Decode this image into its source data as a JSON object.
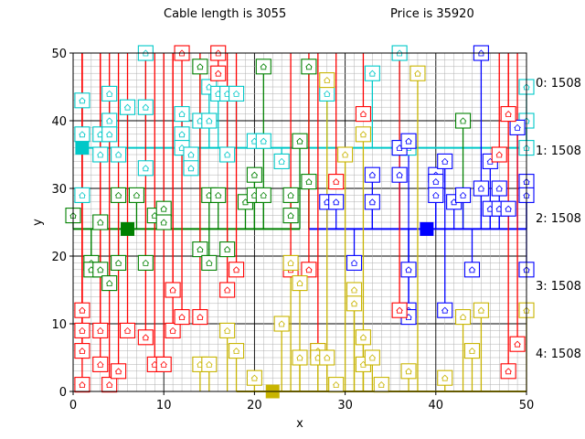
{
  "header": {
    "cable_text": "Cable length is 3055",
    "price_text": "Price is 35920"
  },
  "chart_data": {
    "type": "scatter",
    "xlabel": "x",
    "ylabel": "y",
    "xlim": [
      0,
      50
    ],
    "ylim": [
      0,
      50
    ],
    "x_ticks": [
      "0",
      "10",
      "20",
      "30",
      "40",
      "50"
    ],
    "y_ticks": [
      "0",
      "10",
      "20",
      "30",
      "40",
      "50"
    ],
    "grid": "on",
    "side_labels": [
      "0: 1508",
      "1: 1508",
      "2: 1508",
      "3: 1508",
      "4: 1508"
    ],
    "colors": {
      "red": "#ff0000",
      "cyan": "#00c8c8",
      "green": "#008000",
      "blue": "#0000ff",
      "yellow": "#c8b400"
    },
    "series": [
      {
        "color": "cyan",
        "hub": [
          1,
          36
        ],
        "trunk": "h",
        "trunk_range": [
          1,
          50
        ],
        "houses": [
          [
            1,
            38
          ],
          [
            1,
            43
          ],
          [
            1,
            29
          ],
          [
            3,
            38
          ],
          [
            3,
            35
          ],
          [
            4,
            44
          ],
          [
            4,
            40
          ],
          [
            4,
            38
          ],
          [
            5,
            35
          ],
          [
            6,
            42
          ],
          [
            8,
            42
          ],
          [
            8,
            33
          ],
          [
            8,
            50
          ],
          [
            12,
            41
          ],
          [
            12,
            38
          ],
          [
            12,
            36
          ],
          [
            13,
            35
          ],
          [
            13,
            33
          ],
          [
            14,
            40
          ],
          [
            15,
            45
          ],
          [
            15,
            40
          ],
          [
            16,
            44
          ],
          [
            17,
            44
          ],
          [
            17,
            35
          ],
          [
            18,
            44
          ],
          [
            20,
            37
          ],
          [
            21,
            37
          ],
          [
            23,
            34
          ],
          [
            28,
            44
          ],
          [
            33,
            47
          ],
          [
            36,
            50
          ],
          [
            36,
            36
          ],
          [
            37,
            36
          ],
          [
            50,
            45
          ],
          [
            50,
            40
          ],
          [
            50,
            36
          ]
        ]
      },
      {
        "color": "green",
        "hub": [
          6,
          24
        ],
        "trunk": "h",
        "trunk_range": [
          0,
          25
        ],
        "houses": [
          [
            0,
            26
          ],
          [
            2,
            19
          ],
          [
            2,
            18
          ],
          [
            3,
            18
          ],
          [
            3,
            25
          ],
          [
            4,
            16
          ],
          [
            5,
            29
          ],
          [
            5,
            19
          ],
          [
            7,
            29
          ],
          [
            8,
            19
          ],
          [
            9,
            26
          ],
          [
            10,
            27
          ],
          [
            10,
            25
          ],
          [
            14,
            48
          ],
          [
            14,
            21
          ],
          [
            15,
            29
          ],
          [
            15,
            19
          ],
          [
            16,
            29
          ],
          [
            17,
            21
          ],
          [
            19,
            28
          ],
          [
            20,
            32
          ],
          [
            20,
            29
          ],
          [
            21,
            48
          ],
          [
            21,
            29
          ],
          [
            24,
            29
          ],
          [
            24,
            26
          ],
          [
            25,
            37
          ],
          [
            26,
            48
          ],
          [
            26,
            31
          ],
          [
            43,
            40
          ]
        ]
      },
      {
        "color": "blue",
        "hub": [
          39,
          24
        ],
        "trunk": "h",
        "trunk_range": [
          26,
          50
        ],
        "houses": [
          [
            28,
            28
          ],
          [
            29,
            28
          ],
          [
            31,
            19
          ],
          [
            33,
            32
          ],
          [
            33,
            28
          ],
          [
            36,
            36
          ],
          [
            36,
            32
          ],
          [
            37,
            37
          ],
          [
            37,
            18
          ],
          [
            37,
            12
          ],
          [
            37,
            11
          ],
          [
            40,
            32
          ],
          [
            40,
            31
          ],
          [
            40,
            29
          ],
          [
            41,
            34
          ],
          [
            41,
            12
          ],
          [
            42,
            28
          ],
          [
            43,
            29
          ],
          [
            44,
            18
          ],
          [
            45,
            50
          ],
          [
            45,
            30
          ],
          [
            46,
            34
          ],
          [
            46,
            27
          ],
          [
            47,
            30
          ],
          [
            47,
            27
          ],
          [
            48,
            27
          ],
          [
            49,
            39
          ],
          [
            50,
            31
          ],
          [
            50,
            29
          ],
          [
            50,
            18
          ]
        ]
      },
      {
        "color": "red",
        "hub": null,
        "trunk": "v",
        "trunk_range": [
          0,
          50
        ],
        "houses": [
          [
            1,
            12
          ],
          [
            1,
            9
          ],
          [
            1,
            6
          ],
          [
            1,
            1
          ],
          [
            3,
            9
          ],
          [
            3,
            4
          ],
          [
            4,
            1
          ],
          [
            5,
            3
          ],
          [
            6,
            9
          ],
          [
            8,
            8
          ],
          [
            9,
            4
          ],
          [
            10,
            4
          ],
          [
            11,
            15
          ],
          [
            11,
            9
          ],
          [
            12,
            11
          ],
          [
            12,
            50
          ],
          [
            14,
            11
          ],
          [
            16,
            50
          ],
          [
            16,
            47
          ],
          [
            17,
            15
          ],
          [
            18,
            18
          ],
          [
            24,
            18
          ],
          [
            26,
            18
          ],
          [
            27,
            6
          ],
          [
            29,
            31
          ],
          [
            32,
            41
          ],
          [
            36,
            12
          ],
          [
            47,
            35
          ],
          [
            48,
            41
          ],
          [
            48,
            3
          ],
          [
            49,
            7
          ]
        ]
      },
      {
        "color": "yellow",
        "hub": [
          22,
          0
        ],
        "trunk": "h",
        "trunk_range": [
          18,
          50
        ],
        "houses": [
          [
            14,
            4
          ],
          [
            15,
            4
          ],
          [
            17,
            9
          ],
          [
            18,
            6
          ],
          [
            20,
            2
          ],
          [
            23,
            10
          ],
          [
            24,
            19
          ],
          [
            25,
            16
          ],
          [
            25,
            5
          ],
          [
            27,
            6
          ],
          [
            27,
            5
          ],
          [
            28,
            46
          ],
          [
            28,
            5
          ],
          [
            29,
            1
          ],
          [
            30,
            35
          ],
          [
            31,
            15
          ],
          [
            31,
            13
          ],
          [
            32,
            38
          ],
          [
            32,
            8
          ],
          [
            32,
            4
          ],
          [
            33,
            5
          ],
          [
            34,
            1
          ],
          [
            37,
            3
          ],
          [
            38,
            47
          ],
          [
            41,
            2
          ],
          [
            43,
            11
          ],
          [
            44,
            6
          ],
          [
            45,
            12
          ],
          [
            50,
            12
          ]
        ]
      }
    ]
  }
}
